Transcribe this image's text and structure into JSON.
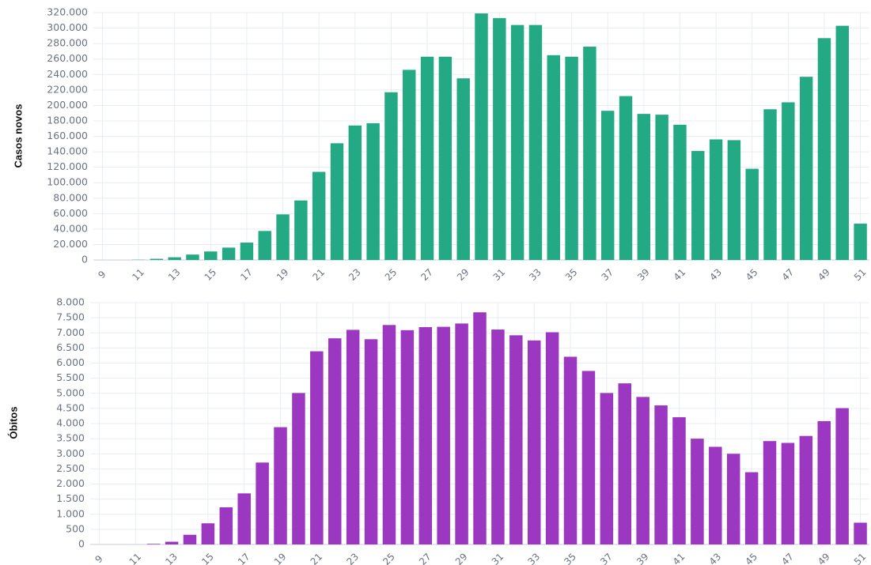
{
  "chart_data": [
    {
      "type": "bar",
      "ylabel": "Casos novos",
      "color": "#23a983",
      "x": [
        9,
        10,
        11,
        12,
        13,
        14,
        15,
        16,
        17,
        18,
        19,
        20,
        21,
        22,
        23,
        24,
        25,
        26,
        27,
        28,
        29,
        30,
        31,
        32,
        33,
        34,
        35,
        36,
        37,
        38,
        39,
        40,
        41,
        42,
        43,
        44,
        45,
        46,
        47,
        48,
        49,
        50,
        51
      ],
      "values": [
        0,
        0,
        300,
        1500,
        3500,
        7000,
        11000,
        16000,
        22500,
        37500,
        59000,
        77000,
        114000,
        151000,
        174000,
        177000,
        217000,
        246000,
        263000,
        263000,
        235000,
        319000,
        313000,
        304000,
        304000,
        265000,
        263000,
        276000,
        193000,
        212000,
        189000,
        188000,
        175000,
        141000,
        156000,
        155000,
        118000,
        195000,
        204000,
        237000,
        287000,
        303000,
        47000
      ],
      "ylim": [
        0,
        320000
      ],
      "yticks": [
        0,
        20000,
        40000,
        60000,
        80000,
        100000,
        120000,
        140000,
        160000,
        180000,
        200000,
        220000,
        240000,
        260000,
        280000,
        300000,
        320000
      ],
      "ytick_labels": [
        "0",
        "20.000",
        "40.000",
        "60.000",
        "80.000",
        "100.000",
        "120.000",
        "140.000",
        "160.000",
        "180.000",
        "200.000",
        "220.000",
        "240.000",
        "260.000",
        "280.000",
        "300.000",
        "320.000"
      ],
      "xtick_labels": [
        "9",
        "11",
        "13",
        "15",
        "17",
        "19",
        "21",
        "23",
        "25",
        "27",
        "29",
        "31",
        "33",
        "35",
        "37",
        "39",
        "41",
        "43",
        "45",
        "47",
        "49",
        "51"
      ],
      "grid": true
    },
    {
      "type": "bar",
      "ylabel": "Óbitos",
      "color": "#9b37c0",
      "x": [
        9,
        10,
        11,
        12,
        13,
        14,
        15,
        16,
        17,
        18,
        19,
        20,
        21,
        22,
        23,
        24,
        25,
        26,
        27,
        28,
        29,
        30,
        31,
        32,
        33,
        34,
        35,
        36,
        37,
        38,
        39,
        40,
        41,
        42,
        43,
        44,
        45,
        46,
        47,
        48,
        49,
        50,
        51
      ],
      "values": [
        0,
        0,
        0,
        20,
        90,
        320,
        700,
        1230,
        1690,
        2710,
        3880,
        5010,
        6390,
        6820,
        7100,
        6790,
        7260,
        7090,
        7190,
        7200,
        7310,
        7680,
        7110,
        6920,
        6750,
        7020,
        6210,
        5740,
        5010,
        5330,
        4880,
        4600,
        4210,
        3500,
        3230,
        3000,
        2390,
        3420,
        3360,
        3590,
        4080,
        4510,
        720
      ],
      "ylim": [
        0,
        8000
      ],
      "yticks": [
        0,
        500,
        1000,
        1500,
        2000,
        2500,
        3000,
        3500,
        4000,
        4500,
        5000,
        5500,
        6000,
        6500,
        7000,
        7500,
        8000
      ],
      "ytick_labels": [
        "0",
        "500",
        "1.000",
        "1.500",
        "2.000",
        "2.500",
        "3.000",
        "3.500",
        "4.000",
        "4.500",
        "5.000",
        "5.500",
        "6.000",
        "6.500",
        "7.000",
        "7.500",
        "8.000"
      ],
      "xtick_labels": [
        "9",
        "11",
        "13",
        "15",
        "17",
        "19",
        "21",
        "23",
        "25",
        "27",
        "29",
        "31",
        "33",
        "35",
        "37",
        "39",
        "41",
        "43",
        "45",
        "47",
        "49",
        "51"
      ],
      "grid": true
    }
  ]
}
